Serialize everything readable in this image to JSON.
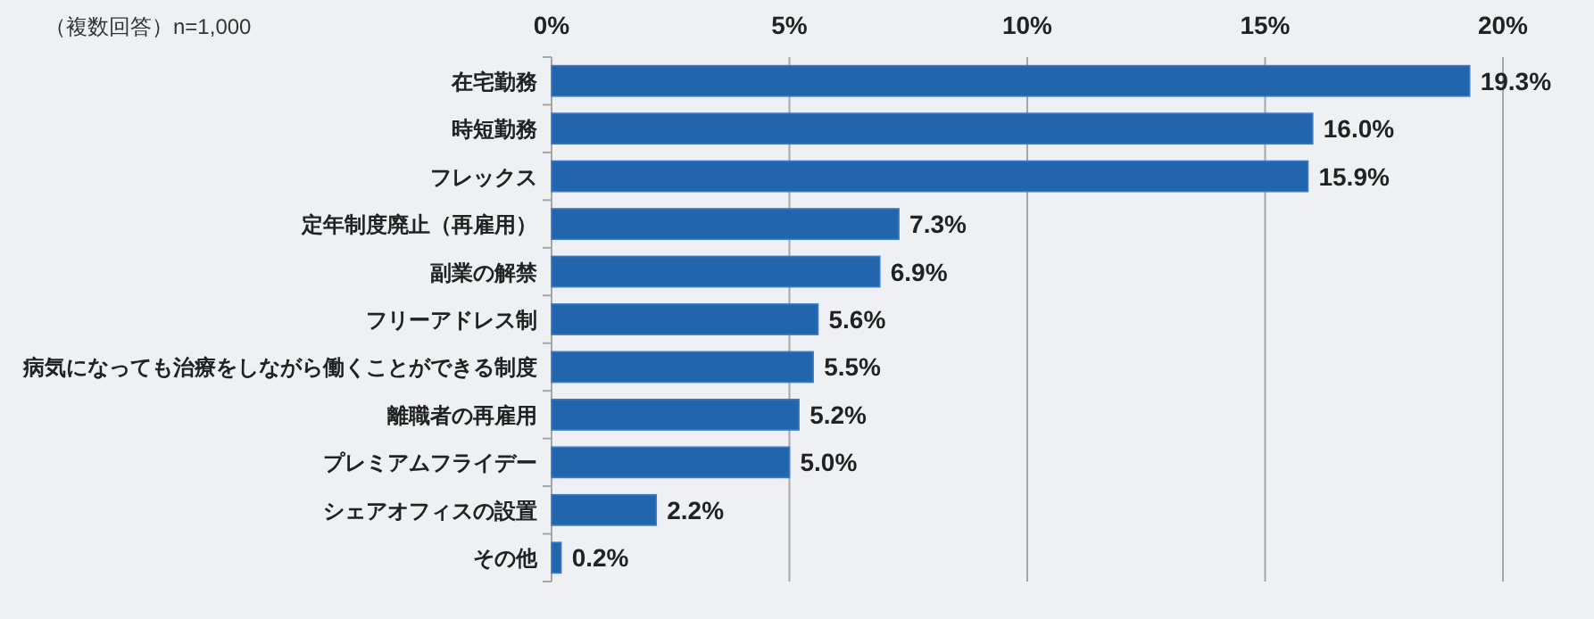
{
  "chart_data": {
    "type": "bar",
    "orientation": "horizontal",
    "categories": [
      "在宅勤務",
      "時短勤務",
      "フレックス",
      "定年制度廃止（再雇用）",
      "副業の解禁",
      "フリーアドレス制",
      "病気になっても治療をしながら働くことができる制度",
      "離職者の再雇用",
      "プレミアムフライデー",
      "シェアオフィスの設置",
      "その他"
    ],
    "values": [
      19.3,
      16.0,
      15.9,
      7.3,
      6.9,
      5.6,
      5.5,
      5.2,
      5.0,
      2.2,
      0.2
    ],
    "value_labels": [
      "19.3%",
      "16.0%",
      "15.9%",
      "7.3%",
      "6.9%",
      "5.6%",
      "5.5%",
      "5.2%",
      "5.0%",
      "2.2%",
      "0.2%"
    ],
    "color": "#2265ad",
    "xlim": [
      0,
      20
    ],
    "xticks": [
      {
        "value": 0,
        "label": "0%"
      },
      {
        "value": 5,
        "label": "5%"
      },
      {
        "value": 10,
        "label": "10%"
      },
      {
        "value": 15,
        "label": "15%"
      },
      {
        "value": 20,
        "label": "20%"
      }
    ],
    "grid": "x",
    "annotations": [
      "（複数回答）n=1,000"
    ]
  }
}
